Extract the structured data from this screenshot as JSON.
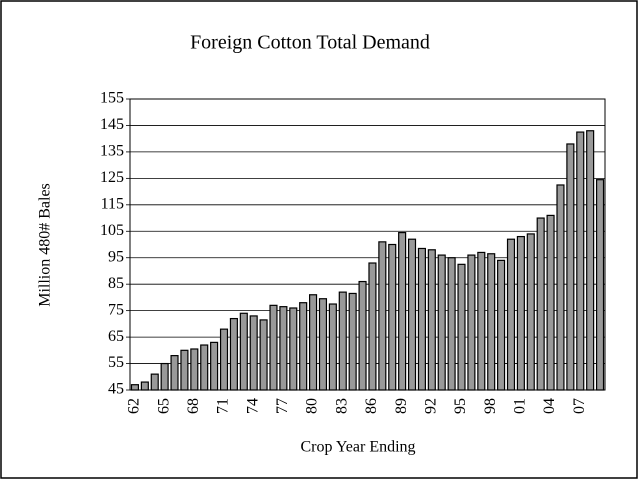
{
  "chart_data": {
    "type": "bar",
    "title": "Foreign Cotton Total Demand",
    "x_label": "Crop Year Ending",
    "y_label": "Million 480# Bales",
    "categories": [
      "62",
      null,
      null,
      "65",
      null,
      null,
      "68",
      null,
      null,
      "71",
      null,
      null,
      "74",
      null,
      null,
      "77",
      null,
      null,
      "80",
      null,
      null,
      "83",
      null,
      null,
      "86",
      null,
      null,
      "89",
      null,
      null,
      "92",
      null,
      null,
      "95",
      null,
      null,
      "98",
      null,
      null,
      "01",
      null,
      null,
      "04",
      null,
      null,
      "07",
      null,
      null
    ],
    "values": [
      47,
      48,
      51,
      55,
      58,
      60,
      60.5,
      62,
      63,
      68,
      72,
      74,
      73,
      71.5,
      77,
      76.5,
      76,
      78,
      81,
      79.5,
      77.5,
      82,
      81.5,
      86,
      93,
      101,
      100,
      104.5,
      102,
      98.5,
      98,
      96,
      95,
      92.5,
      96,
      97,
      96.5,
      94,
      102,
      103,
      104,
      110,
      111,
      122.5,
      138,
      142.5,
      143,
      124.5
    ],
    "color": "#999999",
    "ylim": [
      45,
      155
    ],
    "yticks": [
      45,
      55,
      65,
      75,
      85,
      95,
      105,
      115,
      125,
      135,
      145,
      155
    ],
    "grid": true
  }
}
